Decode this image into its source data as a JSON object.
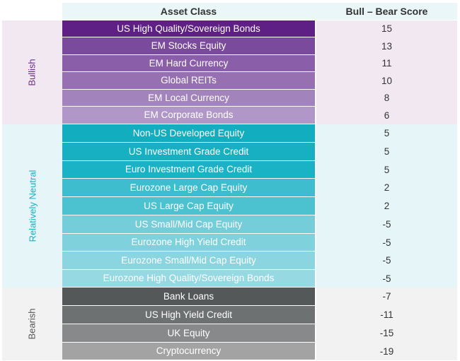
{
  "headers": {
    "asset_class": "Asset Class",
    "score": "Bull – Bear Score"
  },
  "groups": [
    {
      "label": "Bullish",
      "label_color": "#6a2c8a",
      "band_color": "#f1e8f2"
    },
    {
      "label": "Relatively Neutral",
      "label_color": "#17b2c4",
      "band_color": "#e6f5f8"
    },
    {
      "label": "Bearish",
      "label_color": "#555555",
      "band_color": "#f2f2f2"
    }
  ],
  "chart_data": {
    "type": "table",
    "columns": [
      "Asset Class",
      "Bull – Bear Score"
    ],
    "rows": [
      {
        "group": "Bullish",
        "asset": "US High Quality/Sovereign Bonds",
        "score": 15,
        "color": "#5e2085"
      },
      {
        "group": "Bullish",
        "asset": "EM Stocks Equity",
        "score": 13,
        "color": "#7a4a9c"
      },
      {
        "group": "Bullish",
        "asset": "EM Hard Currency",
        "score": 11,
        "color": "#8a5ea8"
      },
      {
        "group": "Bullish",
        "asset": "Global REITs",
        "score": 10,
        "color": "#9770b1"
      },
      {
        "group": "Bullish",
        "asset": "EM Local Currency",
        "score": 8,
        "color": "#a283bc"
      },
      {
        "group": "Bullish",
        "asset": "EM Corporate Bonds",
        "score": 6,
        "color": "#b097c8"
      },
      {
        "group": "Relatively Neutral",
        "asset": "Non-US Developed Equity",
        "score": 5,
        "color": "#12adbf"
      },
      {
        "group": "Relatively Neutral",
        "asset": "US Investment Grade Credit",
        "score": 5,
        "color": "#16b0c2"
      },
      {
        "group": "Relatively Neutral",
        "asset": "Euro Investment Grade Credit",
        "score": 5,
        "color": "#1ab3c5"
      },
      {
        "group": "Relatively Neutral",
        "asset": "Eurozone Large Cap Equity",
        "score": 2,
        "color": "#3dbdcd"
      },
      {
        "group": "Relatively Neutral",
        "asset": "US Large Cap Equity",
        "score": 2,
        "color": "#4cc1d0"
      },
      {
        "group": "Relatively Neutral",
        "asset": "US Small/Mid Cap Equity",
        "score": -5,
        "color": "#74cdd9"
      },
      {
        "group": "Relatively Neutral",
        "asset": "Eurozone High Yield Credit",
        "score": -5,
        "color": "#7fd1dc"
      },
      {
        "group": "Relatively Neutral",
        "asset": "Eurozone Small/Mid Cap Equity",
        "score": -5,
        "color": "#8ad5df"
      },
      {
        "group": "Relatively Neutral",
        "asset": "Eurozone High Quality/Sovereign Bonds",
        "score": -5,
        "color": "#96d9e2"
      },
      {
        "group": "Bearish",
        "asset": "Bank Loans",
        "score": -7,
        "color": "#545859"
      },
      {
        "group": "Bearish",
        "asset": "US High Yield Credit",
        "score": -11,
        "color": "#6e7172"
      },
      {
        "group": "Bearish",
        "asset": "UK Equity",
        "score": -15,
        "color": "#88898a"
      },
      {
        "group": "Bearish",
        "asset": "Cryptocurrency",
        "score": -19,
        "color": "#a3a3a3"
      }
    ]
  }
}
